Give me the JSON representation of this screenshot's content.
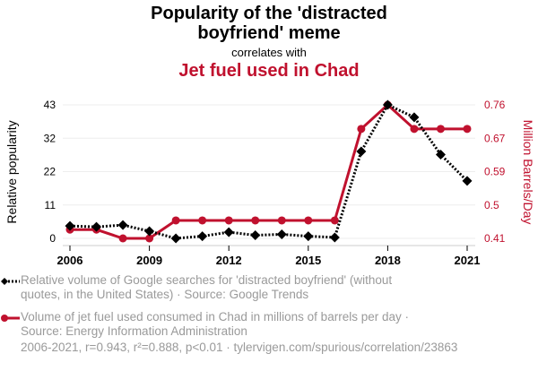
{
  "header": {
    "title_line1": "Popularity of the 'distracted",
    "title_line2": "boyfriend' meme",
    "subtitle": "correlates with",
    "title2": "Jet fuel used in Chad"
  },
  "legend": {
    "series1": {
      "line1": "Relative volume of Google searches for 'distracted boyfriend' (without",
      "line2": "quotes, in the United States) · Source: Google Trends"
    },
    "series2": {
      "line1": "Volume of jet fuel used consumed in Chad in millions of barrels per day ·",
      "line2": "Source: Energy Information Administration"
    }
  },
  "footer": "2006-2021, r=0.943, r²=0.888, p<0.01 · tylervigen.com/spurious/correlation/23863",
  "colors": {
    "series1": "#000000",
    "series2": "#c0112e",
    "grid": "#eeeeee",
    "muted_text": "#9a9a9a"
  },
  "chart_data": {
    "type": "line",
    "title": "Popularity of the 'distracted boyfriend' meme correlates with Jet fuel used in Chad",
    "x": [
      2006,
      2007,
      2008,
      2009,
      2010,
      2011,
      2012,
      2013,
      2014,
      2015,
      2016,
      2017,
      2018,
      2019,
      2020,
      2021
    ],
    "x_ticks": [
      "2006",
      "2009",
      "2012",
      "2015",
      "2018",
      "2021"
    ],
    "x_tick_values": [
      2006,
      2009,
      2012,
      2015,
      2018,
      2021
    ],
    "xlim": [
      2006,
      2021
    ],
    "grid": true,
    "legend_position": "bottom",
    "y_left": {
      "label": "Relative popularity",
      "ticks": [
        "0",
        "11",
        "22",
        "32",
        "43"
      ],
      "tick_values": [
        0,
        10.75,
        21.5,
        32.25,
        43
      ],
      "ylim": [
        0,
        43
      ]
    },
    "y_right": {
      "label": "Million Barrels/Day",
      "ticks": [
        "0.41",
        "0.5",
        "0.59",
        "0.67",
        "0.76"
      ],
      "tick_values": [
        0.41,
        0.4975,
        0.585,
        0.6725,
        0.76
      ],
      "ylim": [
        0.41,
        0.76
      ]
    },
    "series": [
      {
        "name": "Relative volume of Google searches for 'distracted boyfriend'",
        "axis": "left",
        "style": "dotted",
        "marker": "diamond",
        "values": [
          4,
          3.7,
          4.3,
          2.3,
          0,
          0.7,
          2,
          1,
          1.3,
          0.7,
          0.3,
          28,
          43,
          39,
          27,
          18.5
        ]
      },
      {
        "name": "Volume of jet fuel used consumed in Chad",
        "axis": "right",
        "style": "solid",
        "marker": "circle",
        "values": [
          0.433,
          0.433,
          0.41,
          0.41,
          0.457,
          0.457,
          0.457,
          0.457,
          0.457,
          0.457,
          0.457,
          0.697,
          0.76,
          0.697,
          0.697,
          0.697
        ]
      }
    ]
  }
}
